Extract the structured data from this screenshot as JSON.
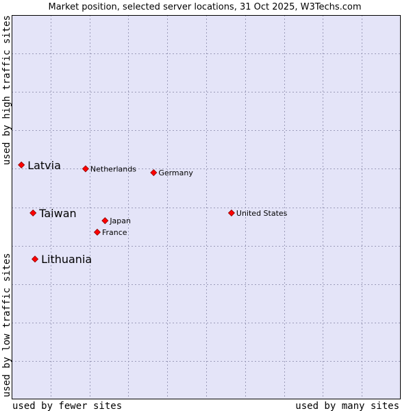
{
  "chart_data": {
    "type": "scatter",
    "title": "Market position, selected server locations, 31 Oct 2025, W3Techs.com",
    "xlabel_low": "used by fewer sites",
    "xlabel_high": "used by many sites",
    "ylabel_low": "used by low traffic sites",
    "ylabel_high": "used by high traffic sites",
    "xlim": [
      0,
      100
    ],
    "ylim": [
      0,
      100
    ],
    "grid": true,
    "colors": {
      "plot_bg": "#e4e4f8",
      "grid": "#9a9ab8",
      "marker": "#ff0000",
      "marker_edge": "#8a0000",
      "border": "#000000"
    },
    "points": [
      {
        "label": "Latvia",
        "x": 2.5,
        "y": 61.0,
        "emphasis": true
      },
      {
        "label": "Taiwan",
        "x": 5.5,
        "y": 48.5,
        "emphasis": true
      },
      {
        "label": "Lithuania",
        "x": 6.0,
        "y": 36.5,
        "emphasis": true
      },
      {
        "label": "Netherlands",
        "x": 19.0,
        "y": 60.0,
        "emphasis": false
      },
      {
        "label": "Germany",
        "x": 36.5,
        "y": 59.0,
        "emphasis": false
      },
      {
        "label": "United States",
        "x": 56.5,
        "y": 48.5,
        "emphasis": false
      },
      {
        "label": "Japan",
        "x": 24.0,
        "y": 46.5,
        "emphasis": false
      },
      {
        "label": "France",
        "x": 22.0,
        "y": 43.5,
        "emphasis": false
      }
    ]
  }
}
